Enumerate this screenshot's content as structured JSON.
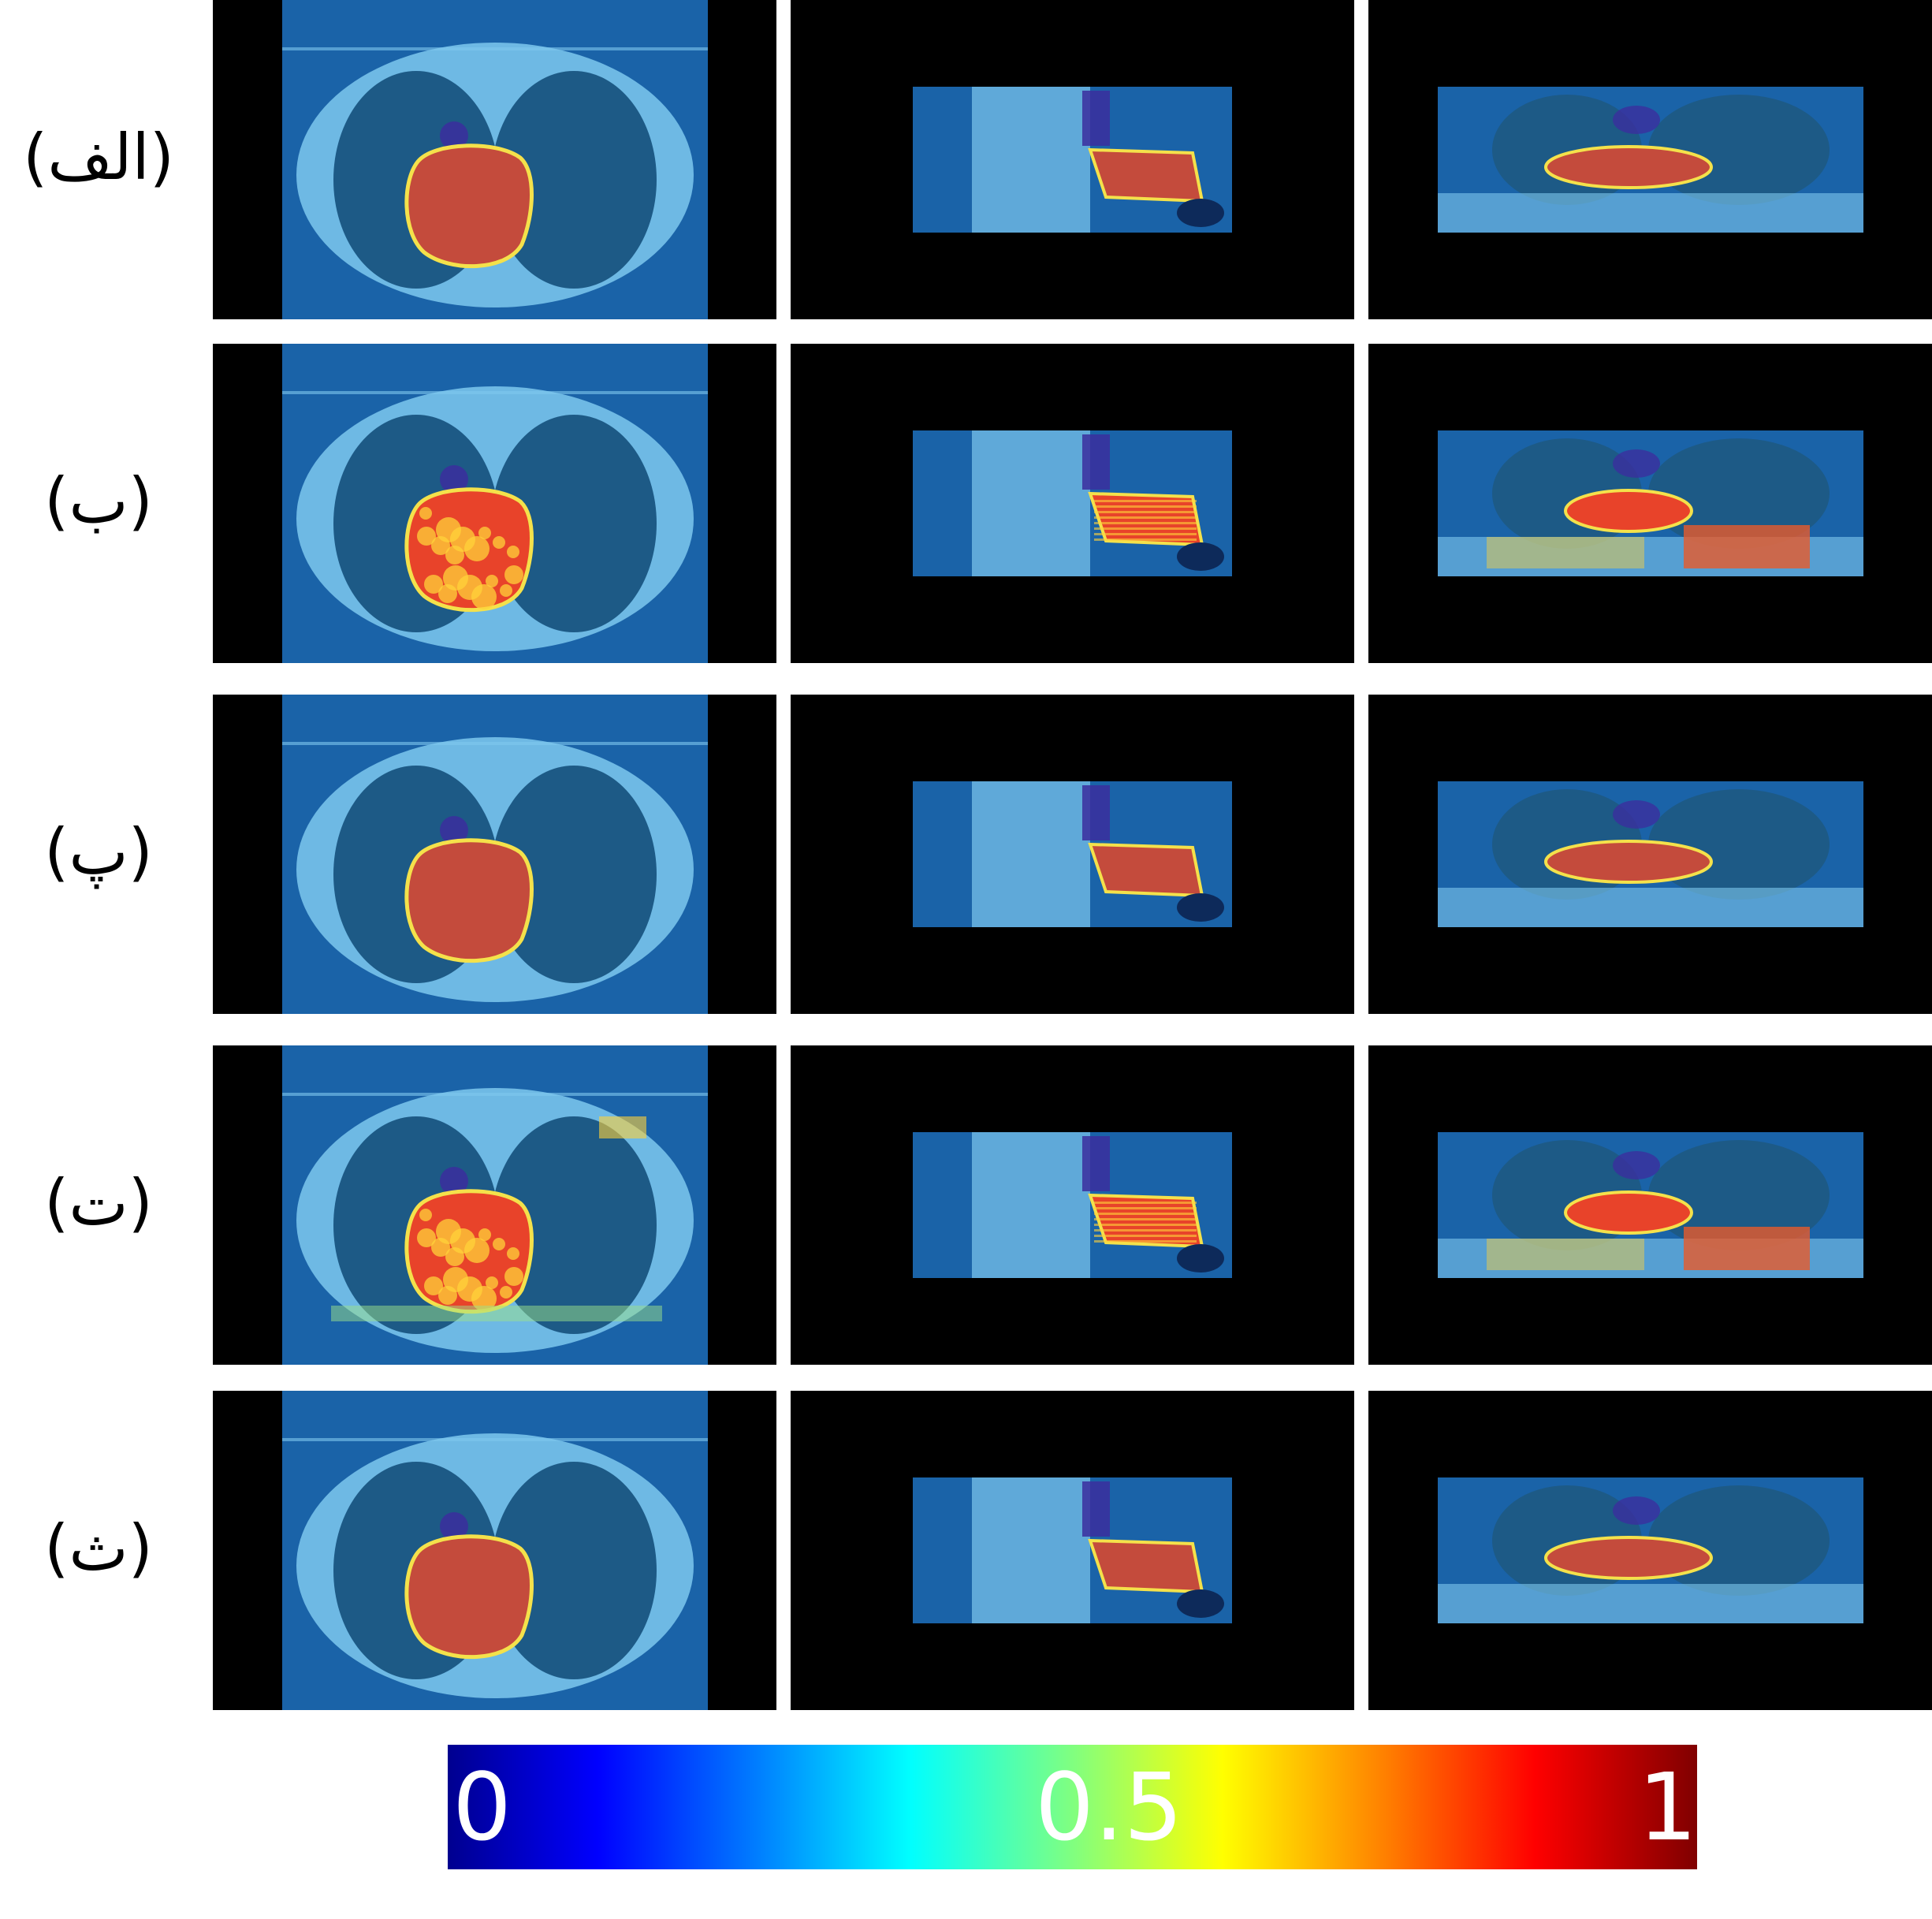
{
  "rows": [
    {
      "label": "(الف)",
      "pattern": "clean"
    },
    {
      "label": "(ب)",
      "pattern": "noisy"
    },
    {
      "label": "(پ)",
      "pattern": "clean"
    },
    {
      "label": "(ت)",
      "pattern": "diffuse"
    },
    {
      "label": "(ث)",
      "pattern": "clean"
    }
  ],
  "views": [
    "axial",
    "sagittal",
    "coronal"
  ],
  "colorbar": {
    "colormap": "jet",
    "range": [
      0,
      1
    ],
    "ticks": [
      "0",
      "0.5",
      "1"
    ]
  },
  "colors": {
    "scan_bg": "#1a63a8",
    "tissue": "#7ec8ee",
    "lung": "#1d5a86",
    "heart_clean": "#c44b3c",
    "heart_noisy": "#e8432a",
    "hot": "#ffd23a",
    "edge": "#f4e14b",
    "airway": "#3b2e9e"
  }
}
